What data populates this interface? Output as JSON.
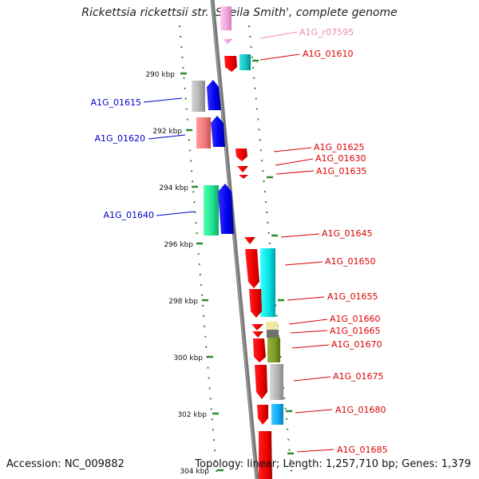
{
  "title": "Rickettsia rickettsii str. 'Sheila Smith', complete genome",
  "accession": "Accession: NC_009882",
  "topology": "Topology: linear; Length: 1,257,710 bp; Genes: 1,379",
  "colors": {
    "backbone": "#777777",
    "scale_dots": "#2e8b2e",
    "label_red": "#dd0000",
    "label_blue": "#0000cc",
    "label_pink": "#ee88bb"
  },
  "ticks": [
    "290 kbp",
    "292 kbp",
    "294 kbp",
    "296 kbp",
    "298 kbp",
    "300 kbp",
    "302 kbp",
    "304 kbp"
  ],
  "genes_left": [
    {
      "name": "A1G_01615"
    },
    {
      "name": "A1G_01620"
    },
    {
      "name": "A1G_01640"
    }
  ],
  "genes_right": [
    {
      "name": "A1G_r07595"
    },
    {
      "name": "A1G_01610"
    },
    {
      "name": "A1G_01625"
    },
    {
      "name": "A1G_01630"
    },
    {
      "name": "A1G_01635"
    },
    {
      "name": "A1G_01645"
    },
    {
      "name": "A1G_01650"
    },
    {
      "name": "A1G_01655"
    },
    {
      "name": "A1G_01660"
    },
    {
      "name": "A1G_01665"
    },
    {
      "name": "A1G_01670"
    },
    {
      "name": "A1G_01675"
    },
    {
      "name": "A1G_01680"
    },
    {
      "name": "A1G_01685"
    }
  ]
}
